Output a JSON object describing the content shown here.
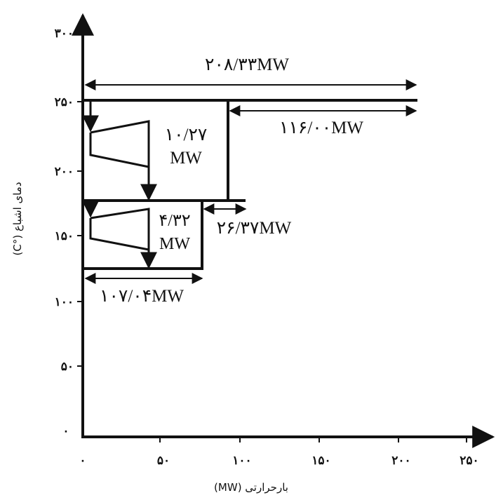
{
  "axes": {
    "x_title": "بارحرارتی (MW)",
    "y_title": "دمای اشباع (°C)",
    "x_ticks": [
      "۰",
      "۵۰",
      "۱۰۰",
      "۱۵۰",
      "۲۰۰",
      "۲۵۰"
    ],
    "y_ticks": [
      "۰",
      "۵۰",
      "۱۰۰",
      "۱۵۰",
      "۲۰۰",
      "۲۵۰",
      "۳۰۰"
    ]
  },
  "annotations": {
    "total_top": "۲۰۸/۳۳MW",
    "upper_right": "۱۱۶/۰۰MW",
    "upper_turbine_num": "۱۰/۲۷",
    "upper_turbine_unit": "MW",
    "mid_gap": "۲۶/۳۷MW",
    "lower_turbine_num": "۴/۳۲",
    "lower_turbine_unit": "MW",
    "lower_bottom": "۱۰۷/۰۴MW"
  }
}
